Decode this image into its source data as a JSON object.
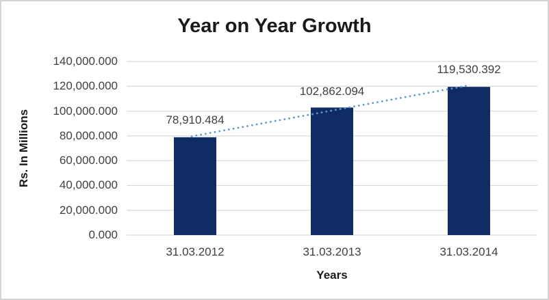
{
  "chart_data": {
    "type": "bar",
    "title": "Year on Year Growth",
    "xlabel": "Years",
    "ylabel": "Rs. In Millions",
    "categories": [
      "31.03.2012",
      "31.03.2013",
      "31.03.2014"
    ],
    "values": [
      78910.484,
      102862.094,
      119530.392
    ],
    "data_labels": [
      "78,910.484",
      "102,862.094",
      "119,530.392"
    ],
    "y_ticks": [
      {
        "value": 0,
        "label": "0.000"
      },
      {
        "value": 20000,
        "label": "20,000.000"
      },
      {
        "value": 40000,
        "label": "40,000.000"
      },
      {
        "value": 60000,
        "label": "60,000.000"
      },
      {
        "value": 80000,
        "label": "80,000.000"
      },
      {
        "value": 100000,
        "label": "100,000.000"
      },
      {
        "value": 120000,
        "label": "120,000.000"
      },
      {
        "value": 140000,
        "label": "140,000.000"
      }
    ],
    "ylim": [
      0,
      140000
    ],
    "grid": true,
    "legend": "none",
    "colors": {
      "bar": "#0f2c64",
      "trendline": "#5b9bd5",
      "gridline": "#d9d9d9",
      "title_text": "#1a1a1a",
      "tick_text": "#404040"
    },
    "trendline": {
      "style": "dotted",
      "shape": "linear"
    }
  }
}
